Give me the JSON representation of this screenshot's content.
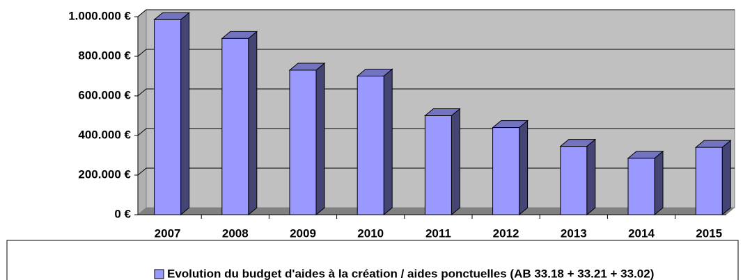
{
  "chart_data": {
    "type": "bar3d",
    "categories": [
      "2007",
      "2008",
      "2009",
      "2010",
      "2011",
      "2012",
      "2013",
      "2014",
      "2015"
    ],
    "series": [
      {
        "name": "Evolution du budget d'aides à la création / aides ponctuelles (AB 33.18 + 33.21 + 33.02)",
        "color": "#9999ff",
        "values": [
          985000,
          890000,
          730000,
          700000,
          500000,
          440000,
          345000,
          285000,
          340000
        ]
      }
    ],
    "ylim": [
      0,
      1000000
    ],
    "yticks": [
      {
        "value": 0,
        "label": "0 €"
      },
      {
        "value": 200000,
        "label": "200.000 €"
      },
      {
        "value": 400000,
        "label": "400.000 €"
      },
      {
        "value": 600000,
        "label": "600.000 €"
      },
      {
        "value": 800000,
        "label": "800.000 €"
      },
      {
        "value": 1000000,
        "label": "1.000.000 €"
      }
    ],
    "grid": true,
    "legend": "bottom"
  }
}
